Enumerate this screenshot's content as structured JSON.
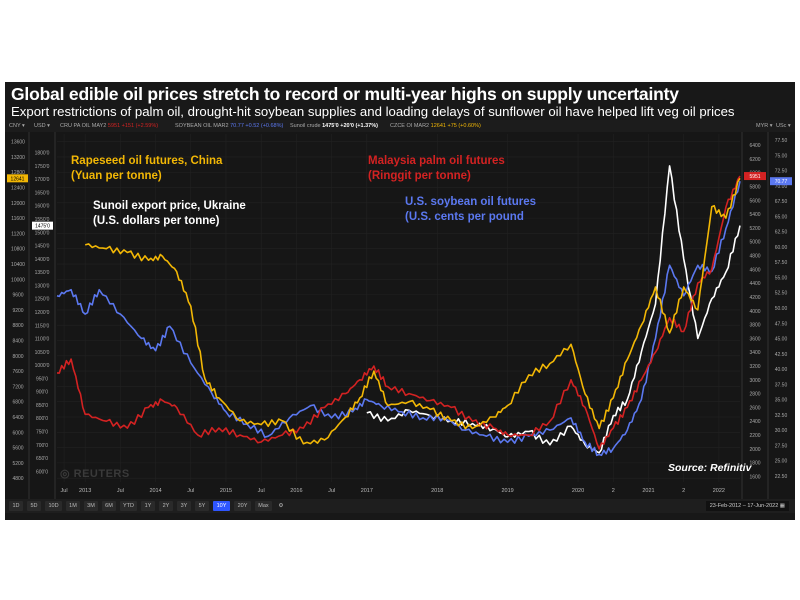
{
  "header": {
    "title": "Global edible oil prices stretch to record or multi-year highs on supply uncertainty",
    "subtitle": "Export restrictions of palm oil, drought-hit soybean supplies and loading delays of sunflower oil have helped lift veg oil prices"
  },
  "toolbar": {
    "left_currency_1": "CNY",
    "left_currency_2": "USD",
    "right_currency_1": "MYR",
    "right_currency_2": "USc",
    "instruments": [
      {
        "name": "CRU PA OIL MAY2",
        "value": "5951 +151 (+2.59%)",
        "color": "#d32222"
      },
      {
        "name": "SOYBEAN OIL MAR2",
        "value": "70.77 +0.52 (+0.68%)",
        "color": "#5b78f0"
      },
      {
        "name": "Sunoil crude",
        "value": "1475'0 +20'0 (+1.37%)",
        "color": "#ffffff"
      },
      {
        "name": "CZCE OI MAR2",
        "value": "12641 +75 (+0.60%)",
        "color": "#f2b705"
      }
    ]
  },
  "annotations": {
    "rapeseed": [
      "Rapeseed oil futures, China",
      "(Yuan per tonne)"
    ],
    "sunoil": [
      "Sunoil export price, Ukraine",
      "(U.S. dollars per tonne)"
    ],
    "palm": [
      "Malaysia palm oil futures",
      "(Ringgit per tonne)"
    ],
    "soybean": [
      "U.S. soybean oil futures",
      "(U.S. cents per pound"
    ]
  },
  "source": "Source: Refinitiv",
  "watermark": "REUTERS",
  "range_buttons": [
    "1D",
    "5D",
    "10D",
    "1M",
    "3M",
    "6M",
    "YTD",
    "1Y",
    "2Y",
    "3Y",
    "5Y",
    "10Y",
    "20Y",
    "Max"
  ],
  "active_range": "10Y",
  "date_range": {
    "from": "23-Feb-2012",
    "to": "17-Jun-2022"
  },
  "colors": {
    "rapeseed": "#f2b705",
    "palm": "#d32222",
    "soybean": "#5b78f0",
    "sunoil": "#ffffff"
  },
  "chart_data": {
    "type": "line",
    "title": "Global edible oil prices stretch to record or multi-year highs on supply uncertainty",
    "x_ticks": [
      "Jul",
      "2013",
      "Jul",
      "2014",
      "Jul",
      "2015",
      "Jul",
      "2016",
      "Jul",
      "2017",
      "2018",
      "2019",
      "2020",
      "2",
      "2021",
      "2",
      "2022"
    ],
    "x_range": [
      2012.6,
      2022.3
    ],
    "axes": {
      "left_cny": {
        "label": "CNY",
        "ticks": [
          4800,
          5200,
          5600,
          6000,
          6400,
          6800,
          7200,
          7600,
          8000,
          8400,
          8800,
          9200,
          9600,
          10000,
          10400,
          10800,
          11200,
          11600,
          12000,
          12400,
          12800,
          13200,
          13600
        ],
        "range": [
          4700,
          13800
        ],
        "current_marker": 12641
      },
      "left_usd": {
        "label": "USD",
        "ticks": [
          500,
          550,
          600,
          650,
          700,
          750,
          800,
          850,
          900,
          950,
          1000,
          1050,
          1100,
          1150,
          1200,
          1250,
          1300,
          1350,
          1400,
          1450,
          1500,
          1550,
          1600,
          1650,
          1700,
          1750,
          1800
        ],
        "tick_labels": [
          "550'0",
          "600'0",
          "650'0",
          "700'0",
          "750'0",
          "800'0",
          "850'0",
          "900'0",
          "950'0",
          "1000'0",
          "1050'0",
          "1100'0",
          "1150'0",
          "1200'0",
          "1250'0",
          "1300'0",
          "1350'0",
          "1400'0",
          "1450'0",
          "1500'0",
          "1550'0",
          "1600'0",
          "1650'0",
          "1700'0",
          "1750'0",
          "1800'0"
        ],
        "range": [
          510,
          1820
        ],
        "current_marker": "1475'0"
      },
      "right_myr": {
        "label": "MYR",
        "ticks": [
          1600,
          1800,
          2000,
          2200,
          2400,
          2600,
          2800,
          3000,
          3200,
          3400,
          3600,
          3800,
          4000,
          4200,
          4400,
          4600,
          4800,
          5000,
          5200,
          5400,
          5600,
          5800,
          6000,
          6200,
          6400
        ],
        "range": [
          1520,
          6560
        ],
        "current_marker": 5951
      },
      "right_usc": {
        "label": "USc",
        "ticks": [
          22.5,
          25,
          27.5,
          30,
          32.5,
          35,
          37.5,
          40,
          42.5,
          45,
          47.5,
          50,
          52.5,
          55,
          57.5,
          60,
          62.5,
          65,
          67.5,
          70,
          72.5,
          75,
          77.5
        ],
        "tick_labels": [
          "22.50",
          "25.00",
          "27.50",
          "30.00",
          "32.50",
          "35.00",
          "37.50",
          "40.00",
          "42.50",
          "45.00",
          "47.50",
          "50.00",
          "52.50",
          "55.00",
          "57.50",
          "60.00",
          "62.50",
          "65.00",
          "67.50",
          "70.00",
          "72.50",
          "75.00",
          "77.50"
        ],
        "range": [
          21.5,
          78.5
        ],
        "current_marker": 70.77
      }
    },
    "series": [
      {
        "name": "Rapeseed oil futures, China (Yuan per tonne)",
        "axis": "left_cny",
        "color": "#f2b705",
        "x": [
          2013.0,
          2013.3,
          2013.6,
          2013.9,
          2014.1,
          2014.3,
          2014.5,
          2014.7,
          2014.9,
          2015.2,
          2015.5,
          2015.8,
          2016.1,
          2016.4,
          2016.7,
          2016.9,
          2017.1,
          2017.3,
          2017.6,
          2017.9,
          2018.2,
          2018.5,
          2018.8,
          2019.0,
          2019.3,
          2019.6,
          2019.9,
          2020.1,
          2020.3,
          2020.5,
          2020.7,
          2020.9,
          2021.1,
          2021.3,
          2021.5,
          2021.7,
          2021.9,
          2022.1,
          2022.3
        ],
        "values": [
          10900,
          10800,
          10700,
          10500,
          10600,
          10200,
          9300,
          7400,
          6900,
          6300,
          6200,
          6300,
          5700,
          5800,
          6400,
          6900,
          7600,
          6700,
          6800,
          6600,
          6300,
          6100,
          6400,
          6700,
          7500,
          7800,
          8300,
          7000,
          6100,
          6900,
          7900,
          8800,
          9800,
          8600,
          9800,
          9200,
          11900,
          11600,
          12641
        ]
      },
      {
        "name": "Malaysia palm oil futures (Ringgit per tonne)",
        "axis": "right_myr",
        "color": "#d32222",
        "x": [
          2012.6,
          2012.8,
          2013.0,
          2013.3,
          2013.6,
          2013.9,
          2014.1,
          2014.3,
          2014.6,
          2014.9,
          2015.2,
          2015.5,
          2015.8,
          2016.1,
          2016.4,
          2016.7,
          2016.9,
          2017.1,
          2017.3,
          2017.6,
          2017.9,
          2018.2,
          2018.5,
          2018.8,
          2019.0,
          2019.3,
          2019.6,
          2019.9,
          2020.1,
          2020.3,
          2020.5,
          2020.7,
          2020.9,
          2021.1,
          2021.3,
          2021.5,
          2021.7,
          2021.9,
          2022.1,
          2022.3
        ],
        "values": [
          3100,
          3300,
          2500,
          2400,
          2300,
          2600,
          2700,
          2600,
          2200,
          2300,
          2200,
          2100,
          2200,
          2300,
          2600,
          2800,
          3000,
          3200,
          2900,
          2800,
          2700,
          2600,
          2400,
          2300,
          2200,
          2200,
          2400,
          3000,
          2600,
          2000,
          2300,
          2600,
          3000,
          3400,
          3900,
          3700,
          4400,
          4600,
          5500,
          5951
        ]
      },
      {
        "name": "U.S. soybean oil futures (U.S. cents per pound)",
        "axis": "right_usc",
        "color": "#5b78f0",
        "x": [
          2012.6,
          2012.8,
          2013.0,
          2013.2,
          2013.5,
          2013.8,
          2014.0,
          2014.2,
          2014.5,
          2014.8,
          2015.0,
          2015.3,
          2015.6,
          2015.9,
          2016.2,
          2016.5,
          2016.8,
          2017.0,
          2017.2,
          2017.5,
          2017.8,
          2018.1,
          2018.4,
          2018.7,
          2019.0,
          2019.3,
          2019.6,
          2019.9,
          2020.1,
          2020.3,
          2020.5,
          2020.7,
          2020.9,
          2021.1,
          2021.3,
          2021.5,
          2021.7,
          2021.9,
          2022.1,
          2022.3
        ],
        "values": [
          52,
          53,
          49,
          53,
          49,
          45,
          43,
          47,
          41,
          36,
          33,
          31,
          29,
          32,
          34,
          32,
          33,
          35,
          34,
          33,
          32,
          32,
          30,
          29,
          28,
          29,
          30,
          32,
          28,
          26,
          27,
          30,
          35,
          45,
          57,
          52,
          57,
          56,
          63,
          70.77
        ]
      },
      {
        "name": "Sunoil export price, Ukraine (U.S. dollars per tonne)",
        "axis": "left_usd",
        "color": "#ffffff",
        "x": [
          2017.0,
          2017.3,
          2017.6,
          2017.9,
          2018.2,
          2018.5,
          2018.8,
          2019.0,
          2019.3,
          2019.6,
          2019.9,
          2020.1,
          2020.3,
          2020.5,
          2020.7,
          2020.9,
          2021.1,
          2021.3,
          2021.5,
          2021.7,
          2021.9,
          2022.1,
          2022.3
        ],
        "values": [
          770,
          740,
          780,
          760,
          740,
          730,
          710,
          680,
          700,
          650,
          720,
          650,
          620,
          760,
          820,
          1000,
          1180,
          1700,
          1350,
          1050,
          1200,
          1300,
          1475
        ]
      }
    ]
  }
}
